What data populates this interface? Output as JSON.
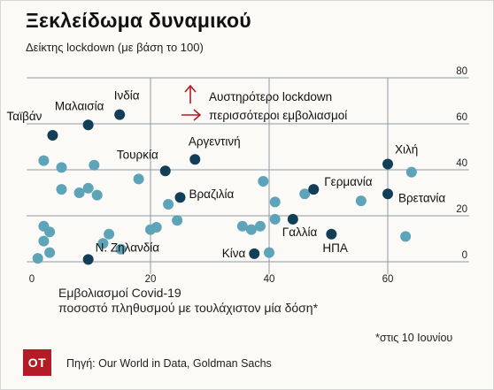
{
  "header": {
    "title": "Ξεκλείδωμα δυναμικού",
    "subtitle": "Δείκτης lockdown (με βάση το 100)"
  },
  "legend": {
    "up_arrow_label": "Αυστηρότερο lockdown",
    "right_arrow_label": "περισσότεροι εμβολιασμοί"
  },
  "xaxis": {
    "label_line1": "Εμβολιασμοί Covid-19",
    "label_line2": "ποσοστό πληθυσμού με τουλάχιστον μία δόση*"
  },
  "footnote": "*στις 10 Ιουνίου",
  "logo_text": "ΟΤ",
  "source": "Πηγή: Our World in Data, Goldman Sachs",
  "colors": {
    "highlight": "#123f57",
    "other": "#5ea4b8",
    "grid": "#8c9aa3",
    "arrow": "#b31b27"
  },
  "chart_data": {
    "type": "scatter",
    "title": "Ξεκλείδωμα δυναμικού",
    "subtitle": "Δείκτης lockdown (με βάση το 100)",
    "xlabel": "Εμβολιασμοί Covid-19 ποσοστό πληθυσμού με τουλάχιστον μία δόση*",
    "ylabel": "Δείκτης lockdown (με βάση το 100)",
    "xlim": [
      -1,
      66
    ],
    "ylim": [
      -3,
      80
    ],
    "xticks": [
      0,
      20,
      40,
      60
    ],
    "yticks": [
      0,
      20,
      40,
      60,
      80
    ],
    "grid": true,
    "legend_position": "top-center",
    "highlighted": [
      {
        "label": "Ταϊβάν",
        "x": 3.5,
        "y": 55
      },
      {
        "label": "Μαλαισία",
        "x": 9.5,
        "y": 59.5
      },
      {
        "label": "Ινδία",
        "x": 14.8,
        "y": 64
      },
      {
        "label": "Τουρκία",
        "x": 22.5,
        "y": 39.5
      },
      {
        "label": "Αργεντινή",
        "x": 27.5,
        "y": 44.5
      },
      {
        "label": "Βραζιλία",
        "x": 25,
        "y": 28
      },
      {
        "label": "Ν. Ζηλανδία",
        "x": 9.5,
        "y": 1
      },
      {
        "label": "Κίνα",
        "x": 37.5,
        "y": 3.5
      },
      {
        "label": "Γαλλία",
        "x": 44,
        "y": 18.5
      },
      {
        "label": "Γερμανία",
        "x": 47.5,
        "y": 31.5
      },
      {
        "label": "ΗΠΑ",
        "x": 50.5,
        "y": 12
      },
      {
        "label": "Χιλή",
        "x": 60,
        "y": 42.5
      },
      {
        "label": "Βρετανία",
        "x": 60,
        "y": 29.5
      }
    ],
    "others": [
      {
        "x": 1,
        "y": 1.5
      },
      {
        "x": 2,
        "y": 15.5
      },
      {
        "x": 2,
        "y": 9
      },
      {
        "x": 3,
        "y": 13
      },
      {
        "x": 3,
        "y": 4
      },
      {
        "x": 2,
        "y": 44
      },
      {
        "x": 5,
        "y": 41
      },
      {
        "x": 5,
        "y": 31.5
      },
      {
        "x": 8,
        "y": 30
      },
      {
        "x": 9.5,
        "y": 32
      },
      {
        "x": 11,
        "y": 29
      },
      {
        "x": 10.5,
        "y": 42
      },
      {
        "x": 12,
        "y": 8
      },
      {
        "x": 13,
        "y": 12
      },
      {
        "x": 15,
        "y": 5.5
      },
      {
        "x": 18,
        "y": 36
      },
      {
        "x": 20,
        "y": 14
      },
      {
        "x": 21,
        "y": 15
      },
      {
        "x": 23,
        "y": 25
      },
      {
        "x": 24.5,
        "y": 18
      },
      {
        "x": 35.5,
        "y": 15.5
      },
      {
        "x": 37,
        "y": 14
      },
      {
        "x": 38.5,
        "y": 15.5
      },
      {
        "x": 39,
        "y": 35
      },
      {
        "x": 40,
        "y": 4
      },
      {
        "x": 41,
        "y": 26
      },
      {
        "x": 41,
        "y": 18.5
      },
      {
        "x": 46,
        "y": 29.5
      },
      {
        "x": 55.5,
        "y": 26.5
      },
      {
        "x": 63,
        "y": 11
      },
      {
        "x": 64,
        "y": 39
      }
    ]
  }
}
